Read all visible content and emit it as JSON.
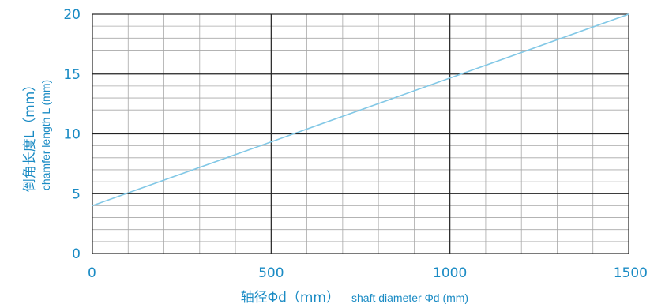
{
  "chart_data": {
    "type": "line",
    "title": "",
    "xlabel_cn": "轴径Φd（mm）",
    "xlabel_en": "shaft diameter Φd  (mm)",
    "ylabel_cn": "倒角长度L（mm）",
    "ylabel_en": "chamfer length L  (mm)",
    "xlim": [
      0,
      1500
    ],
    "ylim": [
      0,
      20
    ],
    "x_ticks": [
      "0",
      "500",
      "1000",
      "1500"
    ],
    "y_ticks": [
      "0",
      "5",
      "10",
      "15",
      "20"
    ],
    "x_minor_step": 100,
    "y_minor_step": 1,
    "grid": true,
    "series": [
      {
        "x": [
          0,
          1500
        ],
        "values": [
          4,
          20
        ]
      }
    ],
    "colors": {
      "line": "#82c8e6",
      "major_grid": "#222222",
      "minor_grid": "#a8a8a8",
      "text": "#1a8bc4"
    }
  }
}
